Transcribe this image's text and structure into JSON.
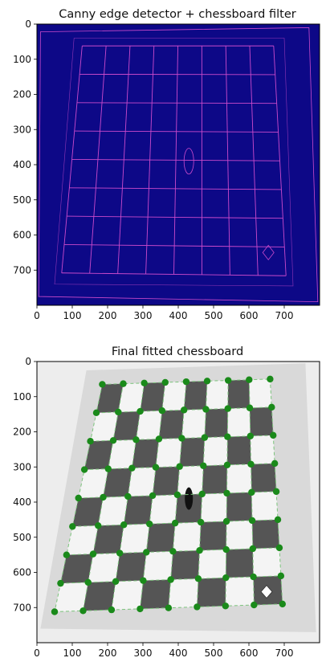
{
  "chart_data": [
    {
      "type": "image",
      "title": "Canny edge detector + chessboard filter",
      "xlim": [
        0,
        800
      ],
      "ylim": [
        800,
        0
      ],
      "xticks": [
        0,
        100,
        200,
        300,
        400,
        500,
        600,
        700
      ],
      "yticks": [
        0,
        100,
        200,
        300,
        400,
        500,
        600,
        700
      ],
      "colors": {
        "background": "#0d0887",
        "edges": "#cc4acb"
      },
      "board_corners": {
        "top_left": [
          128,
          62
        ],
        "top_right": [
          670,
          62
        ],
        "bottom_left": [
          70,
          708
        ],
        "bottom_right": [
          705,
          716
        ]
      },
      "grid_divisions": 8
    },
    {
      "type": "image",
      "title": "Final fitted chessboard",
      "xlim": [
        0,
        800
      ],
      "ylim": [
        800,
        0
      ],
      "xticks": [
        0,
        100,
        200,
        300,
        400,
        500,
        600,
        700
      ],
      "yticks": [
        0,
        100,
        200,
        300,
        400,
        500,
        600,
        700
      ],
      "colors": {
        "points": "#1a8a1a",
        "lines": "#7cc47c",
        "paper": "#d9d9d9",
        "dark_square": "#555555"
      },
      "board_corners": {
        "top_left": [
          185,
          65
        ],
        "top_right": [
          660,
          50
        ],
        "bottom_left": [
          50,
          712
        ],
        "bottom_right": [
          695,
          690
        ]
      },
      "grid_divisions": 8
    }
  ]
}
